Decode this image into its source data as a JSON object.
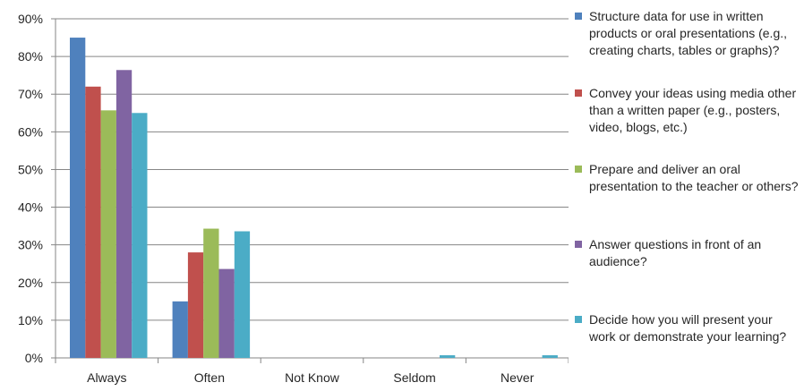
{
  "chart_data": {
    "type": "bar",
    "categories": [
      "Always",
      "Often",
      "Not Know",
      "Seldom",
      "Never"
    ],
    "series": [
      {
        "name": "Structure data for use in written products or oral presentations (e.g., creating charts, tables or graphs)?",
        "color": "#4F81BD",
        "values": [
          85,
          15,
          0,
          0,
          0
        ]
      },
      {
        "name": "Convey your ideas using media other than a written paper (e.g., posters, video, blogs, etc.)",
        "color": "#C0504D",
        "values": [
          72,
          28,
          0,
          0,
          0
        ]
      },
      {
        "name": "Prepare and deliver an oral presentation to the teacher or others?",
        "color": "#9BBB59",
        "values": [
          65.7,
          34.3,
          0,
          0,
          0
        ]
      },
      {
        "name": "Answer questions in front of an audience?",
        "color": "#8064A2",
        "values": [
          76.4,
          23.6,
          0,
          0,
          0
        ]
      },
      {
        "name": "Decide how you will present your work or demonstrate your learning?",
        "color": "#4BACC6",
        "values": [
          65,
          33.6,
          0,
          0.7,
          0.7
        ]
      }
    ],
    "ylim": [
      0,
      90
    ],
    "yticks": [
      "0%",
      "10%",
      "20%",
      "30%",
      "40%",
      "50%",
      "60%",
      "70%",
      "80%",
      "90%"
    ],
    "grid": true,
    "legend_position": "right"
  }
}
